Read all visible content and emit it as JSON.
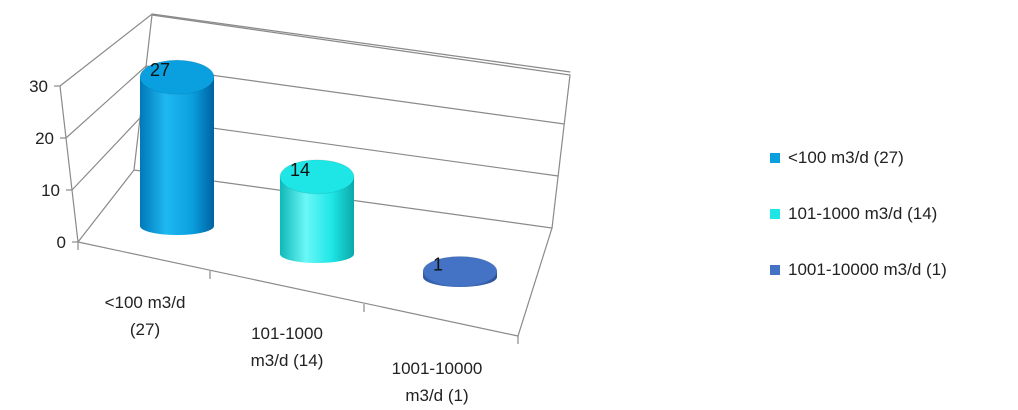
{
  "chart_data": {
    "type": "bar",
    "style": "3d-cylinder",
    "title": "",
    "xlabel": "",
    "ylabel": "",
    "categories": [
      "<100 m3/d (27)",
      "101-1000 m3/d (14)",
      "1001-10000 m3/d (1)"
    ],
    "category_lines": [
      [
        "<100 m3/d",
        "(27)"
      ],
      [
        "101-1000",
        "m3/d (14)"
      ],
      [
        "1001-10000",
        "m3/d (1)"
      ]
    ],
    "values": [
      27,
      14,
      1
    ],
    "data_labels": [
      "27",
      "14",
      "1"
    ],
    "yticks": [
      "0",
      "10",
      "20",
      "30"
    ],
    "ylim": [
      0,
      30
    ],
    "grid": true,
    "legend_position": "right",
    "colors": [
      "#0AA0E0",
      "#1EE6E6",
      "#4472C4"
    ],
    "series": [
      {
        "name": "<100 m3/d (27)",
        "values": [
          27,
          null,
          null
        ],
        "color": "#0AA0E0"
      },
      {
        "name": "101-1000 m3/d (14)",
        "values": [
          null,
          14,
          null
        ],
        "color": "#1EE6E6"
      },
      {
        "name": "1001-10000 m3/d (1)",
        "values": [
          null,
          null,
          1
        ],
        "color": "#4472C4"
      }
    ]
  }
}
